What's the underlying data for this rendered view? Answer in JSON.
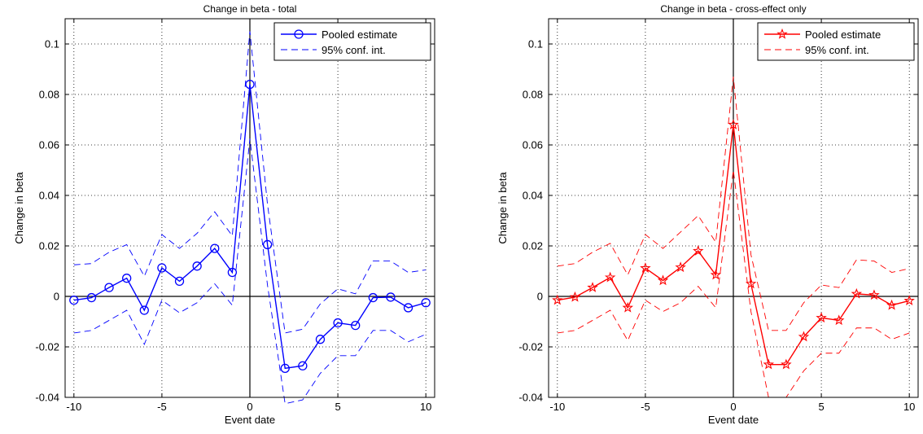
{
  "chart_data": [
    {
      "type": "line",
      "title": "Change in beta - total",
      "xlabel": "Event date",
      "ylabel": "Change in beta",
      "xlim": [
        -10.5,
        10.5
      ],
      "ylim": [
        -0.04,
        0.11
      ],
      "xticks": [
        "-10",
        "-5",
        "0",
        "5",
        "10"
      ],
      "yticks": [
        "-0.04",
        "-0.02",
        "0",
        "0.02",
        "0.04",
        "0.06",
        "0.08",
        "0.1"
      ],
      "grid": true,
      "legend_position": "top-right",
      "color": "#0000ff",
      "marker": "circle",
      "x": [
        -10,
        -9,
        -8,
        -7,
        -6,
        -5,
        -4,
        -3,
        -2,
        -1,
        0,
        1,
        2,
        3,
        4,
        5,
        6,
        7,
        8,
        9,
        10
      ],
      "series": [
        {
          "name": "Pooled estimate",
          "style": "solid-marker",
          "values": [
            -0.0015,
            -0.0005,
            0.0035,
            0.0072,
            -0.0055,
            0.0113,
            0.006,
            0.012,
            0.019,
            0.0095,
            0.084,
            0.0205,
            -0.0285,
            -0.0275,
            -0.017,
            -0.0105,
            -0.0115,
            -0.0005,
            -0.0003,
            -0.0045,
            -0.0025
          ]
        },
        {
          "name": "95% conf. int.",
          "style": "dashed",
          "values": [
            0.0125,
            0.013,
            0.0175,
            0.0205,
            0.008,
            0.0245,
            0.019,
            0.025,
            0.0335,
            0.024,
            0.105,
            0.0365,
            -0.0145,
            -0.013,
            -0.003,
            0.003,
            0.001,
            0.014,
            0.014,
            0.0095,
            0.0105
          ]
        },
        {
          "values": [
            -0.0145,
            -0.0135,
            -0.0095,
            -0.0055,
            -0.019,
            -0.0015,
            -0.0065,
            -0.0025,
            0.005,
            -0.0035,
            0.0625,
            0.0045,
            -0.0425,
            -0.041,
            -0.0305,
            -0.0235,
            -0.0235,
            -0.0135,
            -0.0135,
            -0.018,
            -0.015
          ]
        }
      ]
    },
    {
      "type": "line",
      "title": "Change in beta - cross-effect only",
      "xlabel": "Event date",
      "ylabel": "Change in beta",
      "xlim": [
        -10.5,
        10.5
      ],
      "ylim": [
        -0.04,
        0.11
      ],
      "xticks": [
        "-10",
        "-5",
        "0",
        "5",
        "10"
      ],
      "yticks": [
        "-0.04",
        "-0.02",
        "0",
        "0.02",
        "0.04",
        "0.06",
        "0.08",
        "0.1"
      ],
      "grid": true,
      "legend_position": "top-right",
      "color": "#ff0000",
      "marker": "star",
      "x": [
        -10,
        -9,
        -8,
        -7,
        -6,
        -5,
        -4,
        -3,
        -2,
        -1,
        0,
        1,
        2,
        3,
        4,
        5,
        6,
        7,
        8,
        9,
        10
      ],
      "series": [
        {
          "name": "Pooled estimate",
          "style": "solid-marker",
          "values": [
            -0.0015,
            -0.0003,
            0.0035,
            0.0075,
            -0.0045,
            0.0112,
            0.0063,
            0.0115,
            0.018,
            0.0085,
            0.068,
            0.005,
            -0.027,
            -0.027,
            -0.016,
            -0.0085,
            -0.0095,
            0.001,
            0.0005,
            -0.0035,
            -0.0017
          ]
        },
        {
          "name": "95% conf. int.",
          "style": "dashed",
          "values": [
            0.012,
            0.013,
            0.0175,
            0.021,
            0.0085,
            0.0245,
            0.019,
            0.0255,
            0.032,
            0.0215,
            0.087,
            0.0165,
            -0.0135,
            -0.0135,
            -0.0025,
            0.0045,
            0.0035,
            0.0145,
            0.014,
            0.0095,
            0.011
          ]
        },
        {
          "values": [
            -0.0145,
            -0.0135,
            -0.0095,
            -0.0055,
            -0.0175,
            -0.0015,
            -0.006,
            -0.0025,
            0.004,
            -0.0045,
            0.05,
            -0.006,
            -0.04,
            -0.04,
            -0.0295,
            -0.0225,
            -0.0225,
            -0.0125,
            -0.0125,
            -0.017,
            -0.0145
          ]
        }
      ]
    }
  ]
}
